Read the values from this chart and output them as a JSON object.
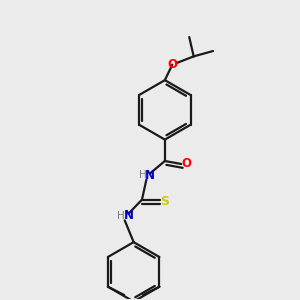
{
  "bg_color": "#ebebeb",
  "bond_color": "#1a1a1a",
  "color_O": "#ff0000",
  "color_N": "#0000cc",
  "color_S": "#cccc00",
  "color_H": "#7a7a7a",
  "lw": 1.6,
  "figsize": [
    3.0,
    3.0
  ],
  "dpi": 100,
  "xlim": [
    0,
    10
  ],
  "ylim": [
    0,
    10
  ]
}
